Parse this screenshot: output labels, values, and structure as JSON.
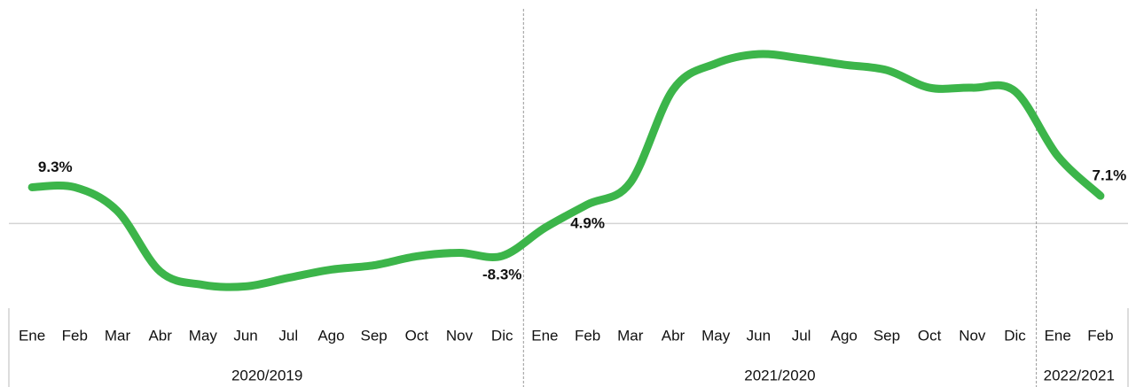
{
  "chart_data": {
    "type": "line",
    "categories": [
      "Ene",
      "Feb",
      "Mar",
      "Abr",
      "May",
      "Jun",
      "Jul",
      "Ago",
      "Sep",
      "Oct",
      "Nov",
      "Dic",
      "Ene",
      "Feb",
      "Mar",
      "Abr",
      "May",
      "Jun",
      "Jul",
      "Ago",
      "Sep",
      "Oct",
      "Nov",
      "Dic",
      "Ene",
      "Feb"
    ],
    "groups": [
      {
        "label": "2020/2019",
        "count": 12
      },
      {
        "label": "2021/2020",
        "count": 12
      },
      {
        "label": "2022/2021",
        "count": 2
      }
    ],
    "values": [
      9.3,
      9.3,
      3.2,
      -12.3,
      -15.7,
      -16.1,
      -13.9,
      -11.8,
      -10.7,
      -8.4,
      -7.5,
      -8.3,
      -1.1,
      4.9,
      10.5,
      34.3,
      41,
      43.4,
      42.3,
      40.7,
      39.3,
      34.8,
      34.8,
      33.9,
      17.3,
      7.1
    ],
    "value_labels": [
      null,
      "9.3%",
      null,
      null,
      null,
      null,
      null,
      null,
      null,
      null,
      null,
      "-8.3%",
      null,
      "4.9%",
      null,
      null,
      null,
      null,
      null,
      null,
      null,
      null,
      null,
      null,
      null,
      "7.1%"
    ],
    "color": "#3cb54a",
    "ylim": [
      -21,
      55
    ]
  }
}
